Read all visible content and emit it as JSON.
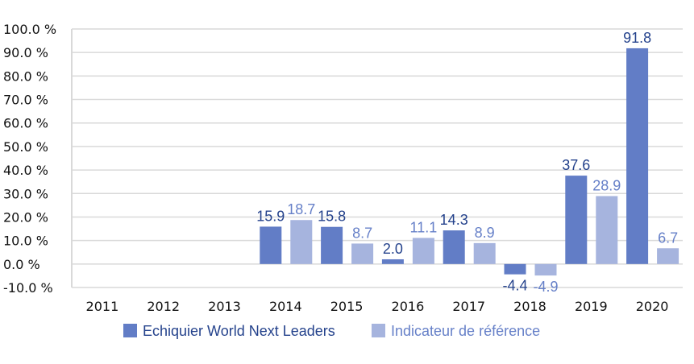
{
  "chart_data": {
    "type": "bar",
    "categories": [
      "2011",
      "2012",
      "2013",
      "2014",
      "2015",
      "2016",
      "2017",
      "2018",
      "2019",
      "2020"
    ],
    "series": [
      {
        "name": "Echiquier World Next Leaders",
        "color": "#627dc6",
        "label_color": "#24428c",
        "values": [
          null,
          null,
          null,
          15.9,
          15.8,
          2.0,
          14.3,
          -4.4,
          37.6,
          91.8
        ],
        "labels": [
          "",
          "",
          "",
          "15.9",
          "15.8",
          "2.0",
          "14.3",
          "-4.4",
          "37.6",
          "91.8"
        ]
      },
      {
        "name": "Indicateur de référence",
        "color": "#a6b4de",
        "label_color": "#6680c8",
        "values": [
          null,
          null,
          null,
          18.7,
          8.7,
          11.1,
          8.9,
          -4.9,
          28.9,
          6.7
        ],
        "labels": [
          "",
          "",
          "",
          "18.7",
          "8.7",
          "11.1",
          "8.9",
          "-4.9",
          "28.9",
          "6.7"
        ]
      }
    ],
    "yticks": [
      "100.0 %",
      "90.0 %",
      "80.0 %",
      "70.0 %",
      "60.0 %",
      "50.0 %",
      "40.0 %",
      "30.0 %",
      "20.0 %",
      "10.0 %",
      "0.0 %",
      "-10.0 %"
    ],
    "ytick_values": [
      100,
      90,
      80,
      70,
      60,
      50,
      40,
      30,
      20,
      10,
      0,
      -10
    ],
    "ylim": [
      -10,
      100
    ],
    "grid": true,
    "legend_position": "bottom",
    "title": "",
    "xlabel": "",
    "ylabel": ""
  }
}
